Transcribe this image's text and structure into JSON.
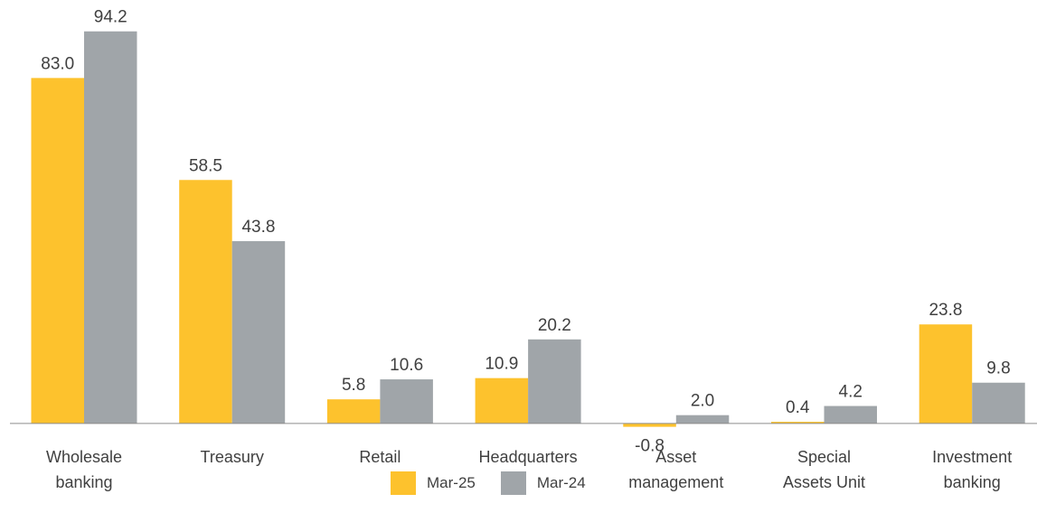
{
  "chart_data": {
    "type": "bar",
    "categories": [
      "Wholesale\nbanking",
      "Treasury",
      "Retail",
      "Headquarters",
      "Asset\nmanagement",
      "Special\nAssets Unit",
      "Investment\nbanking"
    ],
    "series": [
      {
        "name": "Mar-25",
        "color": "#fdc22d",
        "values": [
          83.0,
          58.5,
          5.8,
          10.9,
          -0.8,
          0.4,
          23.8
        ],
        "value_labels": [
          "83.0",
          "58.5",
          "5.8",
          "10.9",
          "-0.8",
          "0.4",
          "23.8"
        ]
      },
      {
        "name": "Mar-24",
        "color": "#a0a5a9",
        "values": [
          94.2,
          43.8,
          10.6,
          20.2,
          2.0,
          4.2,
          9.8
        ],
        "value_labels": [
          "94.2",
          "43.8",
          "10.6",
          "20.2",
          "2.0",
          "4.2",
          "9.8"
        ]
      }
    ],
    "ylim": [
      -10,
      100
    ]
  }
}
